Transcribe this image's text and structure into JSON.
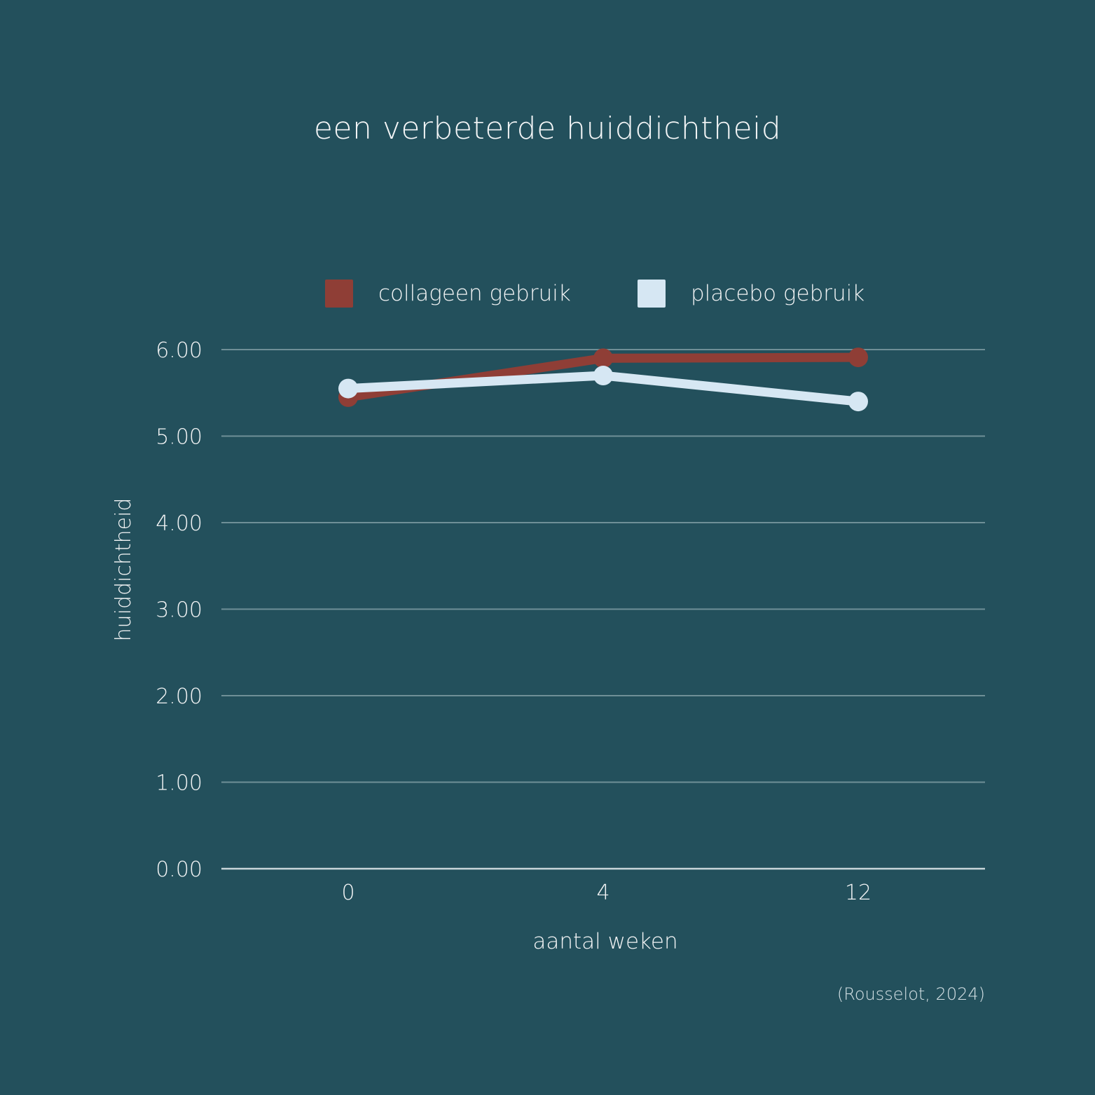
{
  "chart_data": {
    "type": "line",
    "title": "een verbeterde huiddichtheid",
    "xlabel": "aantal weken",
    "ylabel": "huiddichtheid",
    "categories": [
      "0",
      "4",
      "12"
    ],
    "ylim": [
      0,
      6
    ],
    "yticks": [
      "0.00",
      "1.00",
      "2.00",
      "3.00",
      "4.00",
      "5.00",
      "6.00"
    ],
    "grid": true,
    "legend_position": "top",
    "series": [
      {
        "name": "collageen gebruik",
        "color": "#8f3e36",
        "values": [
          5.45,
          5.9,
          5.91
        ]
      },
      {
        "name": "placebo gebruik",
        "color": "#d6e7f3",
        "values": [
          5.55,
          5.7,
          5.4
        ]
      }
    ],
    "source": "(Rousselot, 2024)"
  }
}
